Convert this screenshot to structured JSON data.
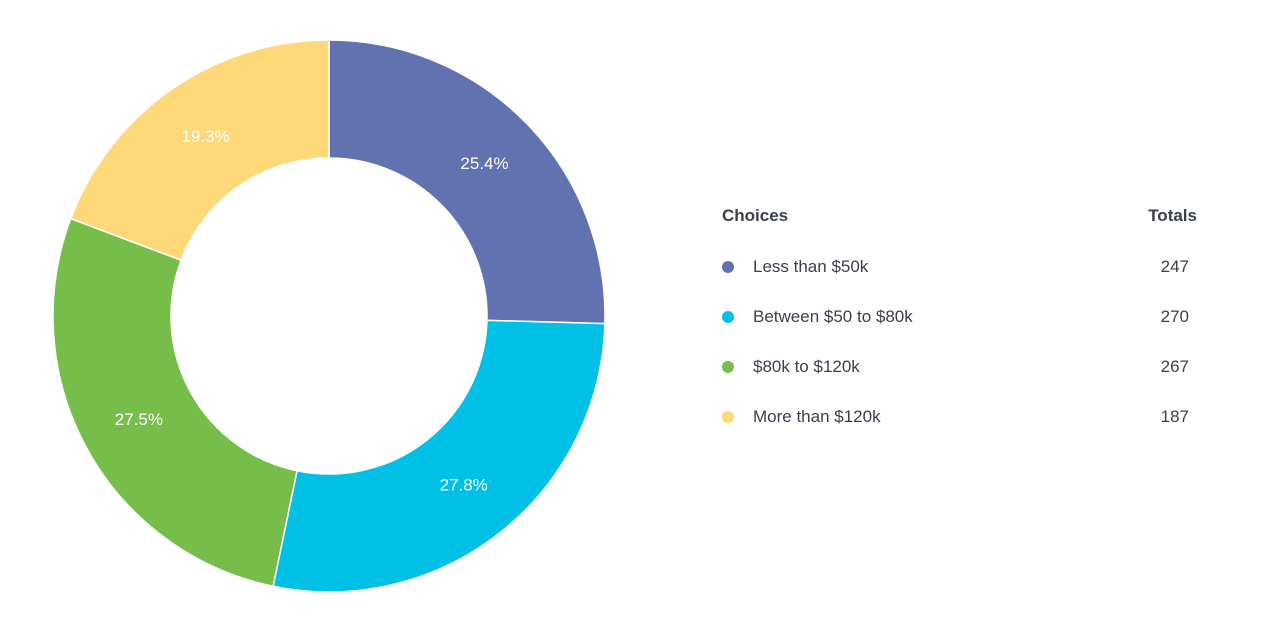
{
  "chart_data": {
    "type": "pie",
    "variant": "donut",
    "slices": [
      {
        "label": "Less than $50k",
        "value": 247,
        "percent_label": "25.4%",
        "color": "#6272b0"
      },
      {
        "label": "Between $50 to $80k",
        "value": 270,
        "percent_label": "27.8%",
        "color": "#00c0e6"
      },
      {
        "label": "$80k to $120k",
        "value": 267,
        "percent_label": "27.5%",
        "color": "#76bd4a"
      },
      {
        "label": "More than $120k",
        "value": 187,
        "percent_label": "19.3%",
        "color": "#ffd87a"
      }
    ],
    "legend": {
      "position": "right",
      "choices_header": "Choices",
      "totals_header": "Totals"
    }
  }
}
